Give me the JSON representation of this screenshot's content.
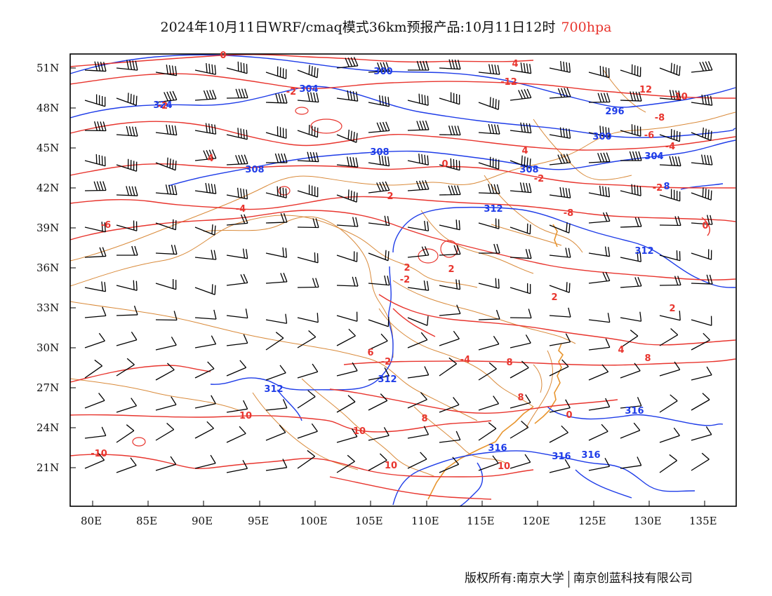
{
  "title": {
    "main": "2024年10月11日WRF/cmaq模式36km预报产品:10月11日12时",
    "level": "700hpa"
  },
  "colors": {
    "height_contour": "#1e3ce8",
    "temperature_contour": "#e8352e",
    "boundary": "#d98a3a",
    "wind_barb": "#000000",
    "level_text": "#e8352e"
  },
  "axes": {
    "lat_labels": [
      "51N",
      "48N",
      "45N",
      "42N",
      "39N",
      "36N",
      "33N",
      "30N",
      "27N",
      "24N",
      "21N"
    ],
    "lon_labels": [
      "80E",
      "85E",
      "90E",
      "95E",
      "100E",
      "105E",
      "110E",
      "115E",
      "120E",
      "125E",
      "130E",
      "135E"
    ]
  },
  "contour_labels": {
    "height": [
      "300",
      "304",
      "324",
      "296",
      "300",
      "308",
      "308",
      "308",
      "304",
      "312",
      "312",
      "312",
      "312",
      "316",
      "316",
      "316",
      "316",
      "8"
    ],
    "temperature": [
      "0",
      "4",
      "-12",
      "-2",
      "12",
      "-10",
      "-8",
      "-6",
      "-4",
      "4",
      "-2",
      "-2",
      "4",
      "2",
      "0",
      "-4",
      "-6",
      "-8",
      "0",
      "2",
      "2",
      "-2",
      "2",
      "4",
      "6",
      "8",
      "8",
      "8",
      "8",
      "10",
      "10",
      "10",
      "10",
      "-10",
      "0",
      "-4",
      "-2",
      "2",
      "-2"
    ]
  },
  "copyright": {
    "left": "版权所有:南京大学",
    "right": "南京创蓝科技有限公司"
  }
}
